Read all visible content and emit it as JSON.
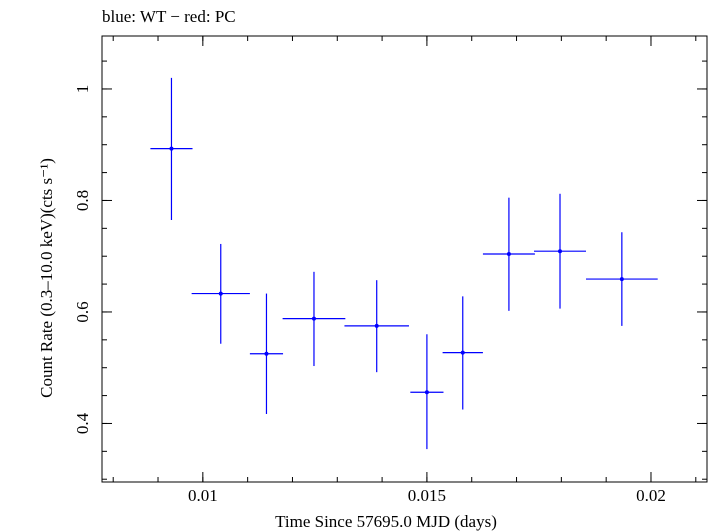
{
  "chart_data": {
    "type": "scatter",
    "title": "blue: WT − red: PC",
    "xlabel": "Time Since 57695.0 MJD (days)",
    "ylabel": "Count Rate (0.3–10.0 keV)(cts s⁻¹)",
    "xlim": [
      0.00775,
      0.02125
    ],
    "ylim": [
      0.295,
      1.095
    ],
    "xticks": [
      {
        "value": 0.01,
        "label": "0.01"
      },
      {
        "value": 0.015,
        "label": "0.015"
      },
      {
        "value": 0.02,
        "label": "0.02"
      }
    ],
    "yticks": [
      {
        "value": 0.4,
        "label": "0.4"
      },
      {
        "value": 0.6,
        "label": "0.6"
      },
      {
        "value": 0.8,
        "label": "0.8"
      },
      {
        "value": 1.0,
        "label": "1"
      }
    ],
    "x_minor_step": 0.001,
    "y_minor_step": 0.05,
    "grid": false,
    "series": [
      {
        "name": "WT",
        "color": "#0000ff",
        "points": [
          {
            "x": 0.0093,
            "xerr": 0.00047,
            "y": 0.893,
            "yerr_low": 0.128,
            "yerr_high": 0.127
          },
          {
            "x": 0.0104,
            "xerr": 0.00065,
            "y": 0.633,
            "yerr_low": 0.09,
            "yerr_high": 0.089
          },
          {
            "x": 0.01142,
            "xerr": 0.00037,
            "y": 0.525,
            "yerr_low": 0.108,
            "yerr_high": 0.108
          },
          {
            "x": 0.01248,
            "xerr": 0.0007,
            "y": 0.588,
            "yerr_low": 0.085,
            "yerr_high": 0.084
          },
          {
            "x": 0.01388,
            "xerr": 0.00072,
            "y": 0.575,
            "yerr_low": 0.083,
            "yerr_high": 0.082
          },
          {
            "x": 0.015,
            "xerr": 0.00037,
            "y": 0.456,
            "yerr_low": 0.102,
            "yerr_high": 0.104
          },
          {
            "x": 0.0158,
            "xerr": 0.00045,
            "y": 0.527,
            "yerr_low": 0.102,
            "yerr_high": 0.101
          },
          {
            "x": 0.01683,
            "xerr": 0.00058,
            "y": 0.704,
            "yerr_low": 0.102,
            "yerr_high": 0.101
          },
          {
            "x": 0.01797,
            "xerr": 0.00058,
            "y": 0.709,
            "yerr_low": 0.103,
            "yerr_high": 0.103
          },
          {
            "x": 0.01935,
            "xerr": 0.0008,
            "y": 0.659,
            "yerr_low": 0.084,
            "yerr_high": 0.084
          }
        ]
      }
    ]
  }
}
